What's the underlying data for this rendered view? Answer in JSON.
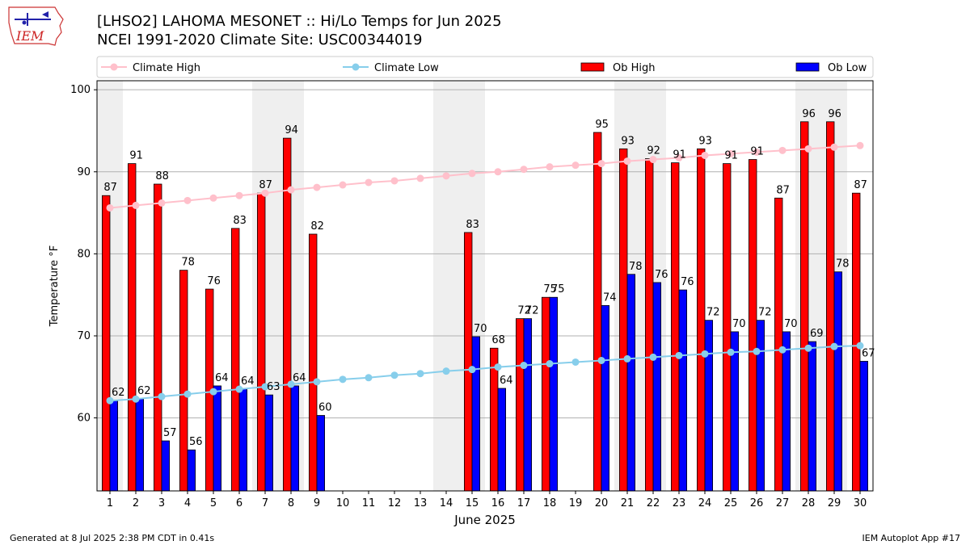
{
  "header": {
    "title_line1": "[LHSO2] LAHOMA MESONET :: Hi/Lo Temps for Jun 2025",
    "title_line2": "NCEI 1991-2020 Climate Site: USC00344019",
    "logo_text": "IEM"
  },
  "footer": {
    "left": "Generated at 8 Jul 2025 2:38 PM CDT in 0.41s",
    "right": "IEM Autoplot App #17"
  },
  "chart_data": {
    "type": "bar",
    "xlabel": "June 2025",
    "ylabel": "Temperature °F",
    "ylim": [
      51.1,
      101.1
    ],
    "yticks": [
      60,
      70,
      80,
      90,
      100
    ],
    "grid": "horizontal",
    "legend_placement": "top",
    "categories": [
      "1",
      "2",
      "3",
      "4",
      "5",
      "6",
      "7",
      "8",
      "9",
      "10",
      "11",
      "12",
      "13",
      "14",
      "15",
      "16",
      "17",
      "18",
      "19",
      "20",
      "21",
      "22",
      "23",
      "24",
      "25",
      "26",
      "27",
      "28",
      "29",
      "30"
    ],
    "weekend_days": [
      1,
      7,
      8,
      14,
      15,
      21,
      22,
      28,
      29
    ],
    "series": [
      {
        "name": "Climate High",
        "kind": "line",
        "color": "#ffc0cb",
        "values": [
          85.6,
          85.9,
          86.2,
          86.5,
          86.8,
          87.1,
          87.4,
          87.8,
          88.1,
          88.4,
          88.7,
          88.9,
          89.2,
          89.5,
          89.8,
          90.0,
          90.3,
          90.6,
          90.8,
          91.0,
          91.3,
          91.5,
          91.7,
          92.0,
          92.2,
          92.4,
          92.6,
          92.8,
          93.0,
          93.2
        ]
      },
      {
        "name": "Climate Low",
        "kind": "line",
        "color": "#87ceeb",
        "values": [
          62.1,
          62.3,
          62.6,
          62.9,
          63.2,
          63.5,
          63.8,
          64.1,
          64.4,
          64.7,
          64.9,
          65.2,
          65.4,
          65.7,
          65.9,
          66.2,
          66.4,
          66.6,
          66.8,
          67.0,
          67.2,
          67.4,
          67.6,
          67.8,
          68.0,
          68.1,
          68.3,
          68.5,
          68.7,
          68.8
        ]
      },
      {
        "name": "Ob High",
        "kind": "bar",
        "color": "#ff0000",
        "values": [
          87.1,
          91.0,
          88.5,
          78.0,
          75.7,
          83.1,
          87.4,
          94.1,
          82.4,
          null,
          null,
          null,
          null,
          null,
          82.6,
          68.5,
          72.1,
          74.7,
          null,
          94.8,
          92.8,
          91.6,
          91.1,
          92.8,
          91.0,
          91.5,
          86.8,
          96.1,
          96.1,
          87.4
        ],
        "labels": [
          "87",
          "91",
          "88",
          "78",
          "76",
          "83",
          "87",
          "94",
          "82",
          "",
          "",
          "",
          "",
          "",
          "83",
          "68",
          "72",
          "75",
          "",
          "95",
          "93",
          "92",
          "91",
          "93",
          "91",
          "91",
          "87",
          "96",
          "96",
          "87"
        ]
      },
      {
        "name": "Ob Low",
        "kind": "bar",
        "color": "#0000ff",
        "values": [
          62.1,
          62.3,
          57.2,
          56.1,
          63.9,
          63.5,
          62.8,
          63.9,
          60.3,
          null,
          null,
          null,
          null,
          null,
          69.9,
          63.6,
          72.1,
          74.7,
          null,
          73.7,
          77.5,
          76.5,
          75.6,
          71.9,
          70.5,
          71.9,
          70.5,
          69.3,
          77.8,
          66.9
        ],
        "labels": [
          "62",
          "62",
          "57",
          "56",
          "64",
          "64",
          "63",
          "64",
          "60",
          "",
          "",
          "",
          "",
          "",
          "70",
          "64",
          "72",
          "75",
          "",
          "74",
          "78",
          "76",
          "76",
          "72",
          "70",
          "72",
          "70",
          "69",
          "78",
          "67"
        ]
      }
    ]
  }
}
